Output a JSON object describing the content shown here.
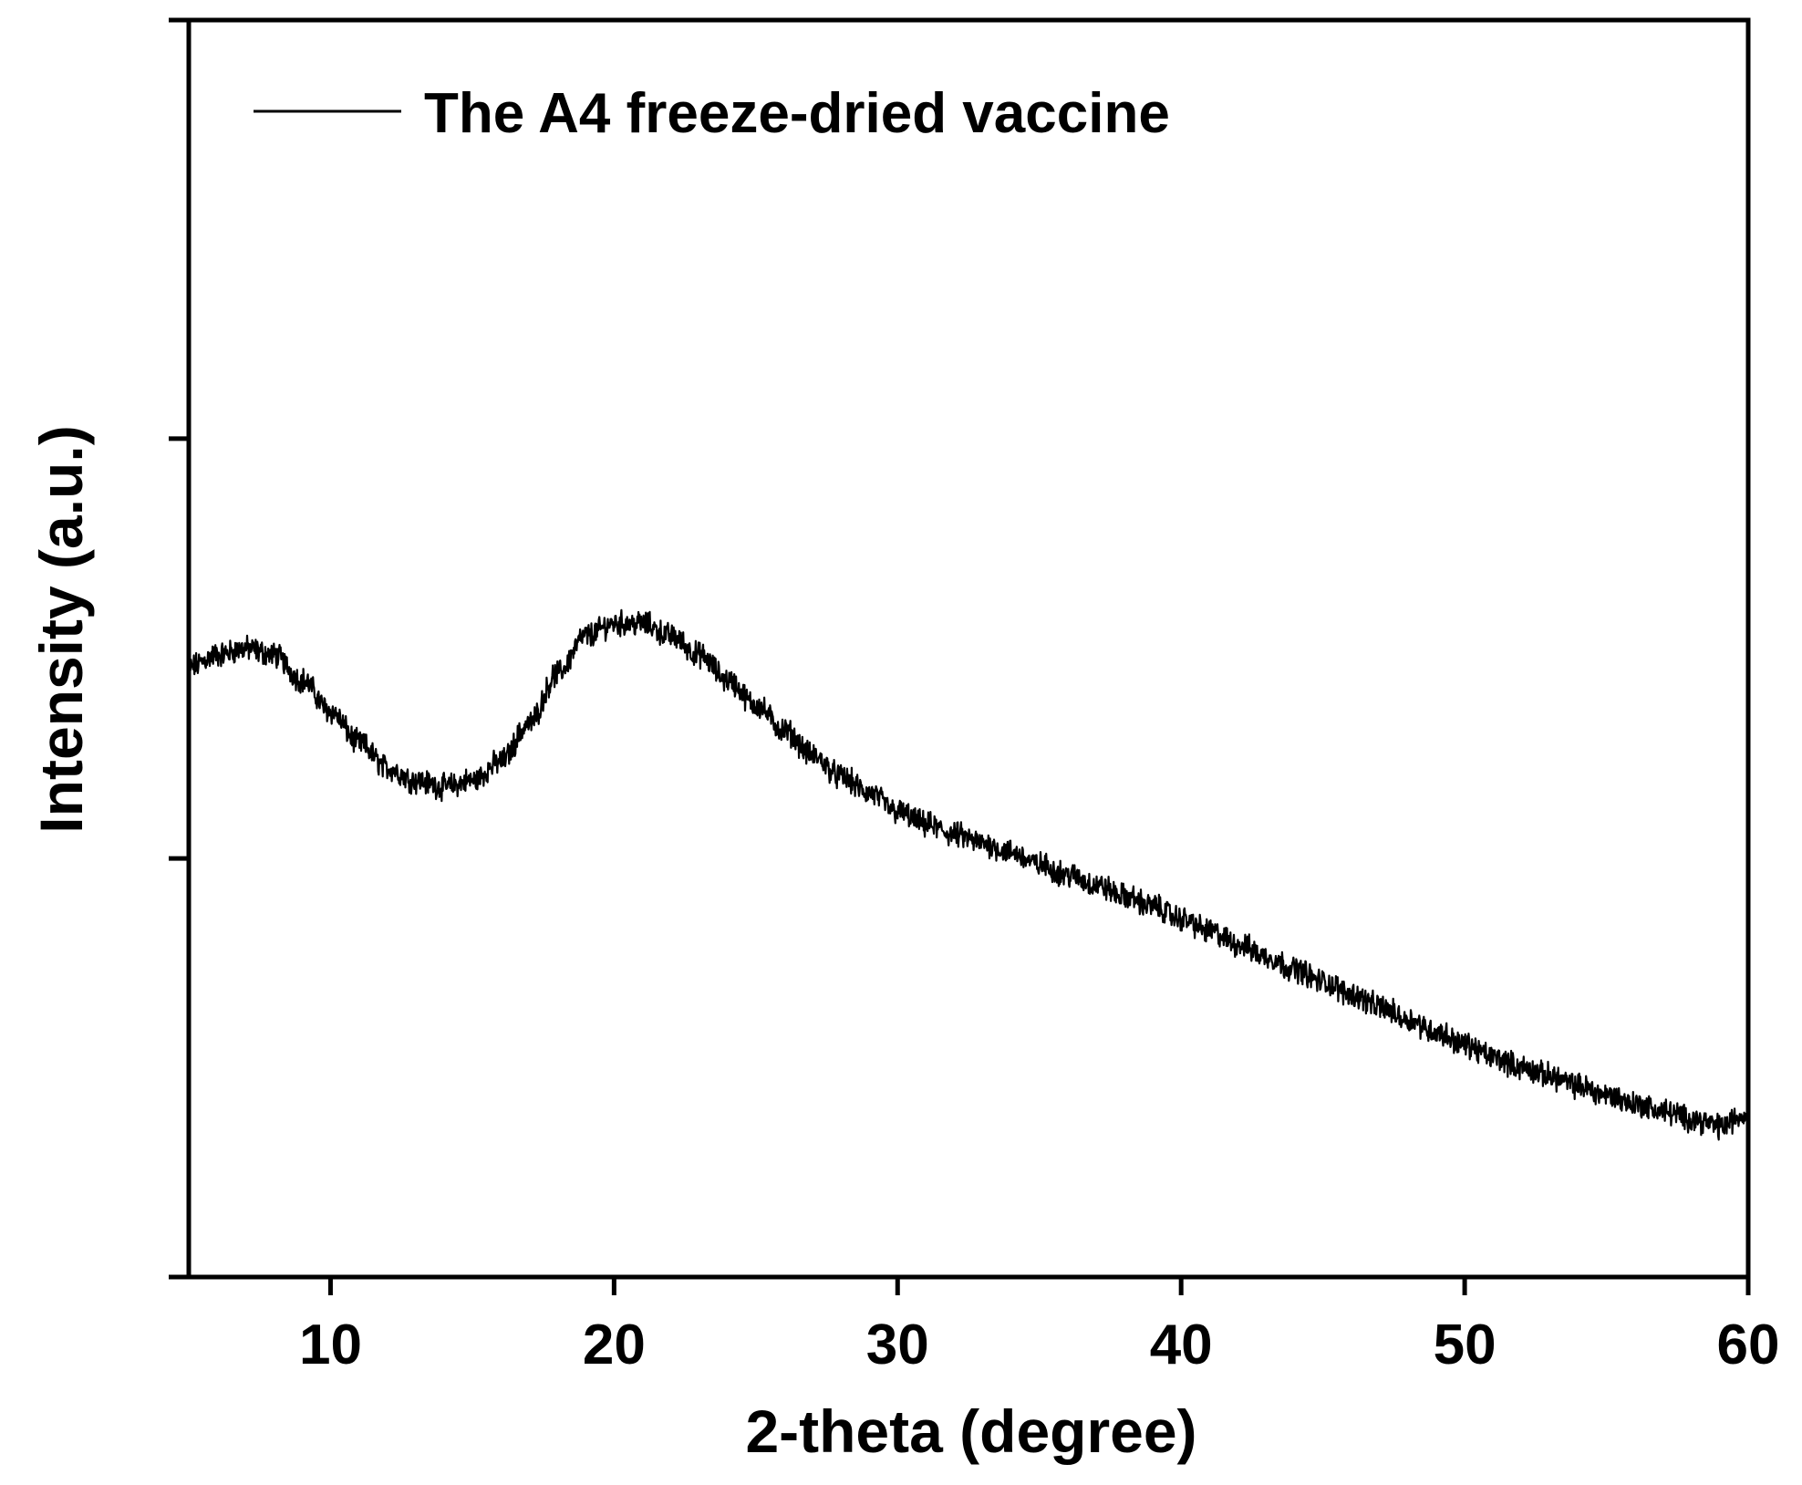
{
  "chart_data": {
    "type": "line",
    "xlabel": "2-theta (degree)",
    "ylabel": "Intensity (a.u.)",
    "xlim": [
      5,
      60
    ],
    "ylim": [
      0,
      100
    ],
    "x_ticks": [
      10,
      20,
      30,
      40,
      50,
      60
    ],
    "y_tick_values": [
      33.3,
      66.7
    ],
    "y_tick_labels_shown": false,
    "grid": false,
    "legend_position": "top-left",
    "series": [
      {
        "name": "The A4 freeze-dried vaccine",
        "color": "#000000",
        "x": [
          5,
          6,
          7,
          8,
          9,
          10,
          11,
          12,
          13,
          14,
          15,
          16,
          17,
          18,
          19,
          20,
          21,
          22,
          23,
          24,
          25,
          26,
          27,
          28,
          29,
          30,
          31,
          32,
          33,
          34,
          35,
          36,
          37,
          38,
          39,
          40,
          41,
          42,
          43,
          44,
          45,
          46,
          47,
          48,
          49,
          50,
          51,
          52,
          53,
          54,
          55,
          56,
          57,
          58,
          59,
          60
        ],
        "y": [
          48.5,
          49.5,
          50.0,
          49.5,
          47.5,
          45.0,
          42.5,
          40.5,
          39.5,
          39.0,
          39.5,
          41.0,
          44.0,
          48.0,
          51.0,
          52.0,
          52.0,
          51.0,
          49.5,
          47.5,
          45.5,
          43.5,
          41.5,
          39.8,
          38.5,
          37.0,
          36.0,
          35.2,
          34.5,
          33.8,
          32.8,
          32.0,
          31.2,
          30.3,
          29.5,
          28.5,
          27.5,
          26.5,
          25.5,
          24.5,
          23.5,
          22.5,
          21.5,
          20.5,
          19.5,
          18.5,
          17.5,
          16.7,
          16.0,
          15.2,
          14.5,
          13.8,
          13.2,
          12.6,
          12.0,
          13.0
        ]
      }
    ]
  }
}
